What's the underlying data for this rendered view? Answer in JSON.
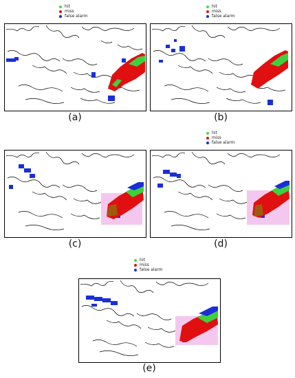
{
  "legend": {
    "items": [
      {
        "label": "hit",
        "color": "#4cd64c"
      },
      {
        "label": "miss",
        "color": "#e01010"
      },
      {
        "label": "false alarm",
        "color": "#1030d0"
      }
    ]
  },
  "colors": {
    "hit": "#3ed13e",
    "miss": "#e01010",
    "false_alarm": "#1a2fd6",
    "miss_faint": "#f4c8ee",
    "miss_dark": "#a05a10",
    "coast": "#000000"
  },
  "panels": [
    {
      "id": "a",
      "caption": "(a)"
    },
    {
      "id": "b",
      "caption": "(b)"
    },
    {
      "id": "c",
      "caption": "(c)"
    },
    {
      "id": "d",
      "caption": "(d)"
    },
    {
      "id": "e",
      "caption": "(e)"
    }
  ]
}
